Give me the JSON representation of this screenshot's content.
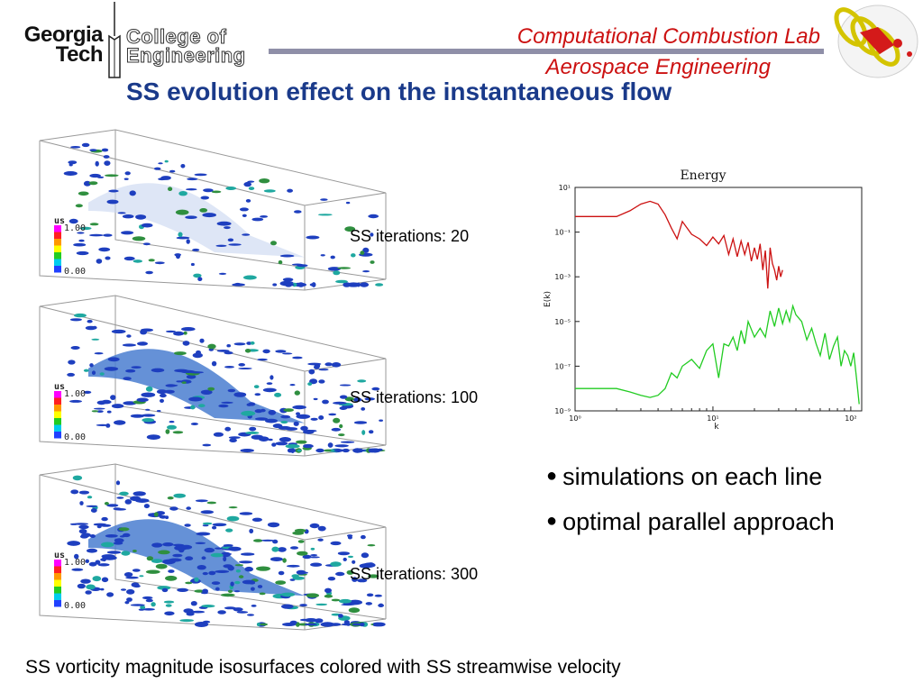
{
  "header": {
    "logo_line1": "Georgia",
    "logo_line2": "Tech",
    "college_line1": "College of",
    "college_line2": "Engineering",
    "lab_name": "Computational Combustion Lab",
    "department": "Aerospace Engineering"
  },
  "slide_title": "SS evolution effect on the instantaneous flow",
  "simulations": [
    {
      "label": "SS iterations: 20",
      "legend_var": "us",
      "legend_max": "1.00",
      "legend_min": "0.00"
    },
    {
      "label": "SS iterations: 100",
      "legend_var": "us",
      "legend_max": "1.00",
      "legend_min": "0.00"
    },
    {
      "label": "SS iterations: 300",
      "legend_var": "us",
      "legend_max": "1.00",
      "legend_min": "0.00"
    }
  ],
  "bullets": [
    "simulations on each line",
    "optimal parallel approach"
  ],
  "caption": "SS vorticity magnitude isosurfaces colored with SS streamwise velocity",
  "colors": {
    "title": "#1a3a8a",
    "lab_text": "#cc1111",
    "red_series": "#cc1111",
    "green_series": "#22cc22"
  },
  "chart_data": {
    "type": "line",
    "title": "Energy",
    "xlabel": "k",
    "ylabel": "E(k)",
    "x_scale": "log",
    "y_scale": "log",
    "xlim": [
      1,
      120
    ],
    "x_ticks": [
      "10⁰",
      "10¹",
      "10²"
    ],
    "y_ticks": [
      "10¹",
      "10⁻¹",
      "10⁻³",
      "10⁻⁵",
      "10⁻⁷",
      "10⁻⁹"
    ],
    "ylim": [
      1e-09,
      10
    ],
    "grid": false,
    "series": [
      {
        "color": "#cc1111",
        "x": [
          1,
          1.5,
          2,
          2.5,
          3,
          3.5,
          4,
          4.5,
          5,
          5.5,
          6,
          7,
          8,
          9,
          10,
          11,
          12,
          13,
          14,
          15,
          16,
          17,
          18,
          19,
          20,
          21,
          22,
          23,
          24,
          25,
          26,
          27,
          28,
          29,
          30,
          31,
          32
        ],
        "y": [
          0.5,
          0.5,
          0.5,
          0.9,
          1.8,
          2.4,
          1.8,
          0.6,
          0.15,
          0.05,
          0.3,
          0.08,
          0.05,
          0.025,
          0.06,
          0.03,
          0.07,
          0.01,
          0.05,
          0.008,
          0.04,
          0.01,
          0.035,
          0.005,
          0.02,
          0.006,
          0.03,
          0.002,
          0.015,
          0.0003,
          0.02,
          0.004,
          0.002,
          0.0007,
          0.003,
          0.001,
          0.002
        ]
      },
      {
        "color": "#22cc22",
        "x": [
          1,
          1.5,
          2,
          2.5,
          3,
          3.5,
          4,
          4.5,
          5,
          5.5,
          6,
          7,
          8,
          9,
          10,
          11,
          12,
          13,
          14,
          15,
          16,
          17,
          18,
          20,
          22,
          24,
          26,
          28,
          30,
          32,
          34,
          36,
          38,
          40,
          44,
          48,
          52,
          56,
          60,
          65,
          70,
          75,
          80,
          85,
          90,
          95,
          100,
          105,
          110,
          115
        ],
        "y": [
          1e-08,
          1e-08,
          1e-08,
          7e-09,
          5e-09,
          4e-09,
          5e-09,
          1e-08,
          5e-08,
          3e-08,
          1e-07,
          2e-07,
          8e-08,
          5e-07,
          1e-06,
          3e-08,
          1e-06,
          8e-07,
          2e-06,
          5e-07,
          4e-06,
          1e-06,
          1e-05,
          2e-06,
          5e-06,
          2e-06,
          3e-05,
          6e-06,
          4e-05,
          8e-06,
          3e-05,
          1e-05,
          5e-05,
          2e-05,
          1e-05,
          1.5e-06,
          5e-06,
          1e-06,
          3e-07,
          3e-06,
          2e-07,
          8e-07,
          2e-06,
          1e-07,
          5e-07,
          3e-07,
          1e-07,
          4e-07,
          3e-08,
          2e-09
        ]
      }
    ]
  }
}
